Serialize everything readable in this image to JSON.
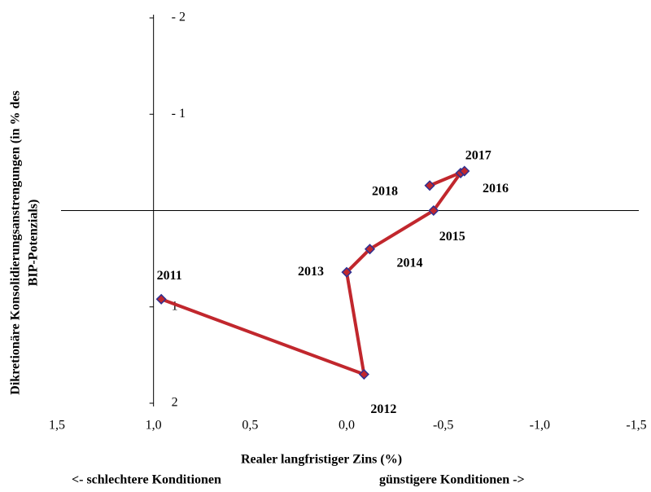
{
  "chart_data": {
    "type": "line",
    "x_label": "Realer langfristiger Zins  (%)",
    "y_label": [
      "Dikretionäre Konsolidierungsanstrengungen (in % des",
      "BIP-Potenzials)"
    ],
    "annotations": [
      "<- schlechtere Konditionen",
      "günstigere Konditionen ->"
    ],
    "x": [
      0.96,
      -0.09,
      0.0,
      -0.12,
      -0.45,
      -0.59,
      -0.61,
      -0.43
    ],
    "values": [
      0.92,
      1.7,
      0.64,
      0.4,
      0.0,
      -0.39,
      -0.41,
      -0.26
    ],
    "point_labels": [
      "2011",
      "2012",
      "2013",
      "2014",
      "2015",
      "2016",
      "2017",
      "2018"
    ],
    "color": "#c1272d",
    "marker_edge_color": "#2e3192",
    "xlim": [
      1.5,
      -1.5
    ],
    "xticks": [
      {
        "value": 1.5,
        "label": "1,5"
      },
      {
        "value": 1.0,
        "label": "1,0"
      },
      {
        "value": 0.5,
        "label": "0,5"
      },
      {
        "value": 0,
        "label": "0,0"
      },
      {
        "value": -0.5,
        "label": "-0,5"
      },
      {
        "value": -1.0,
        "label": "-1,0"
      },
      {
        "value": -1.5,
        "label": "-1,5"
      }
    ],
    "ylim": [
      -2,
      2
    ],
    "yticks": [
      {
        "value": -2,
        "label": "- 2"
      },
      {
        "value": -1,
        "label": "- 1"
      },
      1,
      2
    ],
    "y_axis_at": 1.0,
    "x_axis_at": 0
  }
}
